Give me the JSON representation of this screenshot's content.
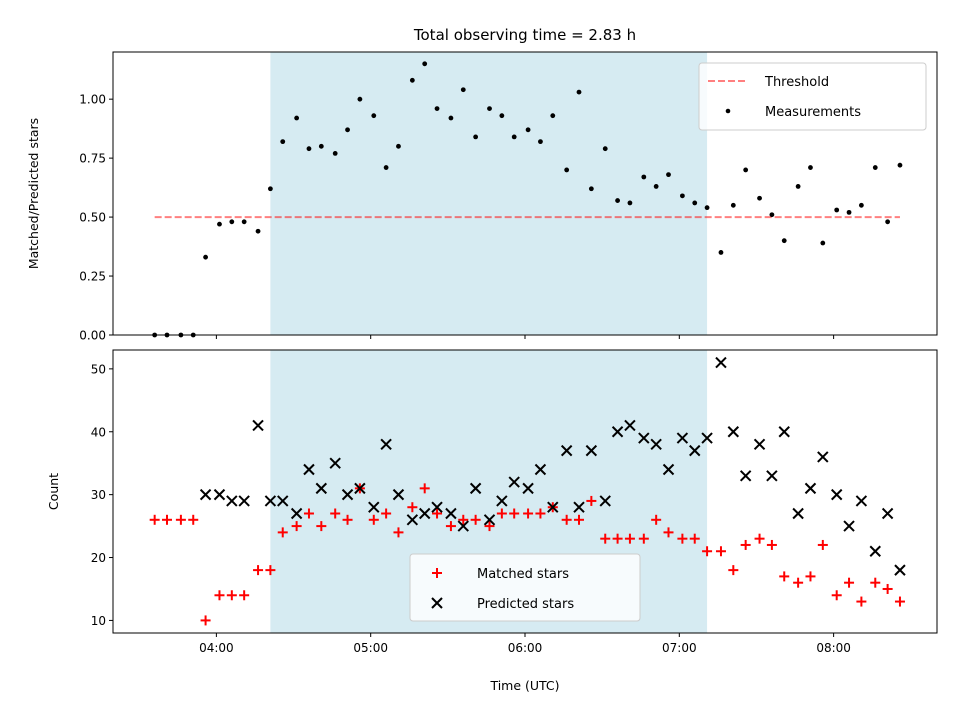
{
  "chart_data": [
    {
      "type": "scatter",
      "title": "Total observing time = 2.83 h",
      "ylabel": "Matched/Predicted stars",
      "xlabel": "",
      "ylim": [
        0,
        1.2
      ],
      "yticks": [
        "0.00",
        "0.25",
        "0.50",
        "0.75",
        "1.00"
      ],
      "ytick_values": [
        0,
        0.25,
        0.5,
        0.75,
        1.0
      ],
      "xlim": [
        3.33,
        8.67
      ],
      "xtick_values": [
        4,
        5,
        6,
        7,
        8
      ],
      "shaded_span": [
        4.35,
        7.18
      ],
      "shaded_color": "#add8e6",
      "threshold": {
        "name": "Threshold",
        "y": 0.5,
        "x": [
          3.6,
          8.43
        ],
        "color": "#ff0000"
      },
      "legend": {
        "position": "top-right",
        "entries": [
          "Threshold",
          "Measurements"
        ]
      },
      "series": [
        {
          "name": "Measurements",
          "color": "#000000",
          "x": [
            3.6,
            3.68,
            3.77,
            3.85,
            3.93,
            4.02,
            4.1,
            4.18,
            4.27,
            4.35,
            4.43,
            4.52,
            4.6,
            4.68,
            4.77,
            4.85,
            4.93,
            5.02,
            5.1,
            5.18,
            5.27,
            5.35,
            5.43,
            5.52,
            5.6,
            5.68,
            5.77,
            5.85,
            5.93,
            6.02,
            6.1,
            6.18,
            6.27,
            6.35,
            6.43,
            6.52,
            6.6,
            6.68,
            6.77,
            6.85,
            6.93,
            7.02,
            7.1,
            7.18,
            7.27,
            7.35,
            7.43,
            7.52,
            7.6,
            7.68,
            7.77,
            7.85,
            7.93,
            8.02,
            8.1,
            8.18,
            8.27,
            8.35,
            8.43
          ],
          "y": [
            0.0,
            0.0,
            0.0,
            0.0,
            0.33,
            0.47,
            0.48,
            0.48,
            0.44,
            0.62,
            0.82,
            0.92,
            0.79,
            0.8,
            0.77,
            0.87,
            1.0,
            0.93,
            0.71,
            0.8,
            1.08,
            1.15,
            0.96,
            0.92,
            1.04,
            0.84,
            0.96,
            0.93,
            0.84,
            0.87,
            0.82,
            0.93,
            0.7,
            1.03,
            0.62,
            0.79,
            0.57,
            0.56,
            0.67,
            0.63,
            0.68,
            0.59,
            0.56,
            0.54,
            0.35,
            0.55,
            0.7,
            0.58,
            0.51,
            0.4,
            0.63,
            0.71,
            0.39,
            0.53,
            0.52,
            0.55,
            0.71,
            0.48,
            0.72
          ]
        }
      ]
    },
    {
      "type": "scatter",
      "title": "",
      "ylabel": "Count",
      "xlabel": "Time (UTC)",
      "ylim": [
        8,
        53
      ],
      "yticks": [
        "10",
        "20",
        "30",
        "40",
        "50"
      ],
      "ytick_values": [
        10,
        20,
        30,
        40,
        50
      ],
      "xlim": [
        3.33,
        8.67
      ],
      "xticks": [
        "04:00",
        "05:00",
        "06:00",
        "07:00",
        "08:00"
      ],
      "xtick_values": [
        4,
        5,
        6,
        7,
        8
      ],
      "shaded_span": [
        4.35,
        7.18
      ],
      "shaded_color": "#add8e6",
      "legend": {
        "position": "bottom-center",
        "entries": [
          "Matched stars",
          "Predicted stars"
        ]
      },
      "series": [
        {
          "name": "Matched stars",
          "color": "#ff0000",
          "marker": "+",
          "x": [
            3.6,
            3.68,
            3.77,
            3.85,
            3.93,
            4.02,
            4.1,
            4.18,
            4.27,
            4.35,
            4.43,
            4.52,
            4.6,
            4.68,
            4.77,
            4.85,
            4.93,
            5.02,
            5.1,
            5.18,
            5.27,
            5.35,
            5.43,
            5.52,
            5.6,
            5.68,
            5.77,
            5.85,
            5.93,
            6.02,
            6.1,
            6.18,
            6.27,
            6.35,
            6.43,
            6.52,
            6.6,
            6.68,
            6.77,
            6.85,
            6.93,
            7.02,
            7.1,
            7.18,
            7.27,
            7.35,
            7.43,
            7.52,
            7.6,
            7.68,
            7.77,
            7.85,
            7.93,
            8.02,
            8.1,
            8.18,
            8.27,
            8.35,
            8.43
          ],
          "y": [
            26,
            26,
            26,
            26,
            10,
            14,
            14,
            14,
            18,
            18,
            24,
            25,
            27,
            25,
            27,
            26,
            31,
            26,
            27,
            24,
            28,
            31,
            27,
            25,
            26,
            26,
            25,
            27,
            27,
            27,
            27,
            28,
            26,
            26,
            29,
            23,
            23,
            23,
            23,
            26,
            24,
            23,
            23,
            21,
            21,
            18,
            22,
            23,
            22,
            17,
            16,
            17,
            22,
            14,
            16,
            13,
            16,
            15,
            13
          ]
        },
        {
          "name": "Predicted stars",
          "color": "#000000",
          "marker": "x",
          "x": [
            3.93,
            4.02,
            4.1,
            4.18,
            4.27,
            4.35,
            4.43,
            4.52,
            4.6,
            4.68,
            4.77,
            4.85,
            4.93,
            5.02,
            5.1,
            5.18,
            5.27,
            5.35,
            5.43,
            5.52,
            5.6,
            5.68,
            5.77,
            5.85,
            5.93,
            6.02,
            6.1,
            6.18,
            6.27,
            6.35,
            6.43,
            6.52,
            6.6,
            6.68,
            6.77,
            6.85,
            6.93,
            7.02,
            7.1,
            7.18,
            7.27,
            7.35,
            7.43,
            7.52,
            7.6,
            7.68,
            7.77,
            7.85,
            7.93,
            8.02,
            8.1,
            8.18,
            8.27,
            8.35,
            8.43
          ],
          "y": [
            30,
            30,
            29,
            29,
            41,
            29,
            29,
            27,
            34,
            31,
            35,
            30,
            31,
            28,
            38,
            30,
            26,
            27,
            28,
            27,
            25,
            31,
            26,
            29,
            32,
            31,
            34,
            28,
            37,
            28,
            37,
            29,
            40,
            41,
            39,
            38,
            34,
            39,
            37,
            39,
            51,
            40,
            33,
            38,
            33,
            40,
            27,
            31,
            36,
            30,
            25,
            29,
            21,
            27,
            18
          ]
        }
      ]
    }
  ]
}
